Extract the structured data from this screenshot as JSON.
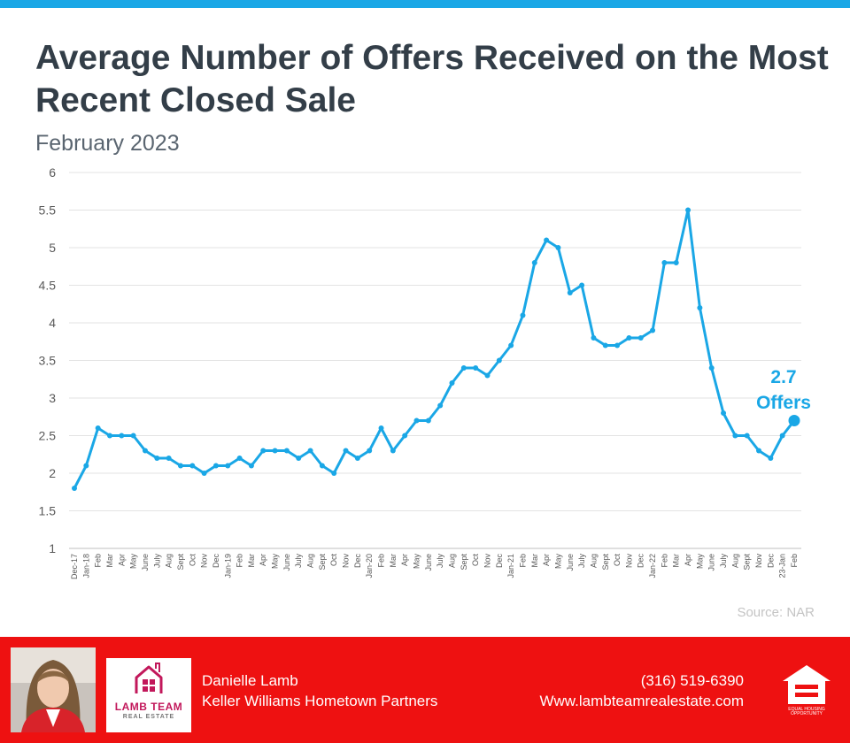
{
  "title": "Average Number of Offers Received on the Most Recent Closed Sale",
  "subtitle": "February 2023",
  "source": "Source: NAR",
  "colors": {
    "accent": "#1aa7e6",
    "footer": "#ee1111",
    "title": "#333e48"
  },
  "chart_data": {
    "type": "line",
    "title": "Average Number of Offers Received on the Most Recent Closed Sale",
    "xlabel": "",
    "ylabel": "",
    "ylim": [
      1,
      6
    ],
    "yticks": [
      "1",
      "1.5",
      "2",
      "2.5",
      "3",
      "3.5",
      "4",
      "4.5",
      "5",
      "5.5",
      "6"
    ],
    "grid": true,
    "categories": [
      "Dec-17",
      "Jan-18",
      "Feb",
      "Mar",
      "Apr",
      "May",
      "June",
      "July",
      "Aug",
      "Sept",
      "Oct",
      "Nov",
      "Dec",
      "Jan-19",
      "Feb",
      "Mar",
      "Apr",
      "May",
      "June",
      "July",
      "Aug",
      "Sept",
      "Oct",
      "Nov",
      "Dec",
      "Jan-20",
      "Feb",
      "Mar",
      "Apr",
      "May",
      "June",
      "July",
      "Aug",
      "Sept",
      "Oct",
      "Nov",
      "Dec",
      "Jan-21",
      "Feb",
      "Mar",
      "Apr",
      "May",
      "June",
      "July",
      "Aug",
      "Sept",
      "Oct",
      "Nov",
      "Dec",
      "Jan-22",
      "Feb",
      "Mar",
      "Apr",
      "May",
      "June",
      "July",
      "Aug",
      "Sept",
      "Nov",
      "Dec",
      "23-Jan",
      "Feb"
    ],
    "series": [
      {
        "name": "Average Number of Offers",
        "values": [
          1.8,
          2.1,
          2.6,
          2.5,
          2.5,
          2.5,
          2.3,
          2.2,
          2.2,
          2.1,
          2.1,
          2.0,
          2.1,
          2.1,
          2.2,
          2.1,
          2.3,
          2.3,
          2.3,
          2.2,
          2.3,
          2.1,
          2.0,
          2.3,
          2.2,
          2.3,
          2.6,
          2.3,
          2.5,
          2.7,
          2.7,
          2.9,
          3.2,
          3.4,
          3.4,
          3.3,
          3.5,
          3.7,
          4.1,
          4.8,
          5.1,
          5.0,
          4.4,
          4.5,
          3.8,
          3.7,
          3.7,
          3.8,
          3.8,
          3.9,
          4.8,
          4.8,
          5.5,
          4.2,
          3.4,
          2.8,
          2.5,
          2.5,
          2.3,
          2.2,
          2.5,
          2.7
        ]
      }
    ],
    "annotation": {
      "value": "2.7",
      "unit": "Offers"
    }
  },
  "footer": {
    "agent_name": "Danielle Lamb",
    "company": "Keller Williams Hometown Partners",
    "phone": "(316) 519-6390",
    "website": "Www.lambteamrealestate.com",
    "logo_name": "LAMB TEAM",
    "logo_sub": "REAL ESTATE",
    "eho_label": "EQUAL HOUSING OPPORTUNITY"
  }
}
